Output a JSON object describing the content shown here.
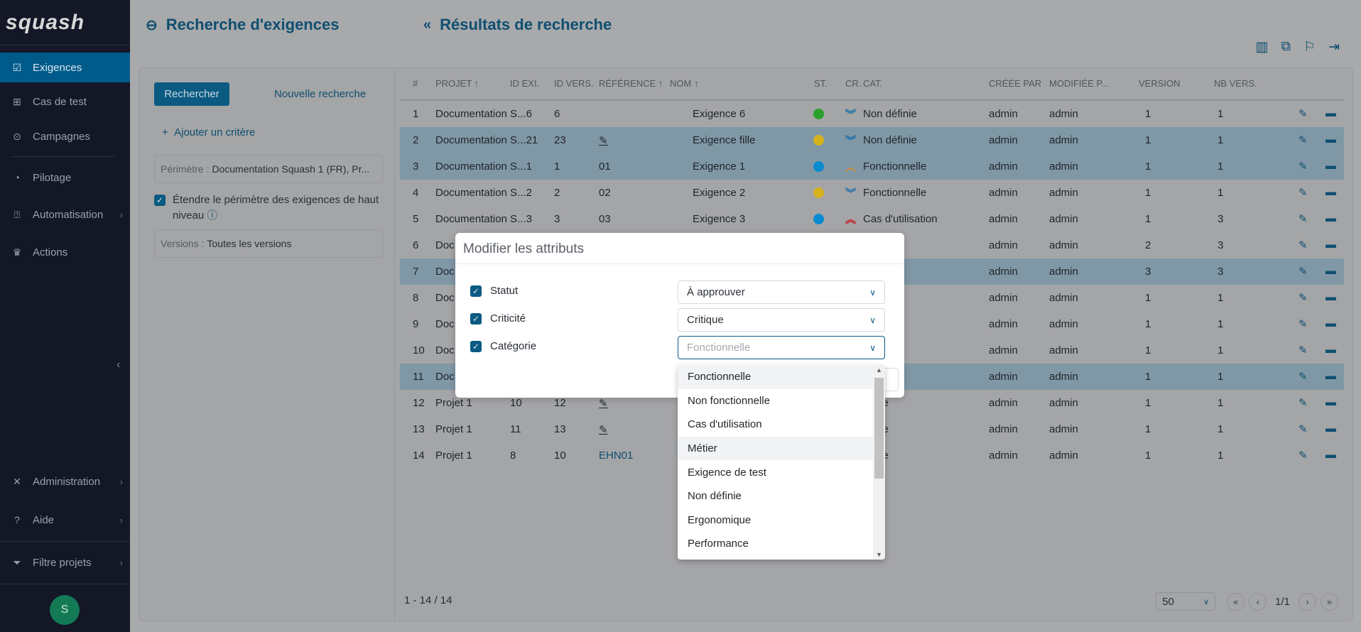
{
  "app": {
    "logo": "squash"
  },
  "sidebar": {
    "items": [
      {
        "label": "Exigences",
        "icon": "checkbox-icon",
        "active": true
      },
      {
        "label": "Cas de test",
        "icon": "tree-icon"
      },
      {
        "label": "Campagnes",
        "icon": "play-circle-icon"
      },
      {
        "label": "Pilotage",
        "icon": "pie-chart-icon"
      },
      {
        "label": "Automatisation",
        "icon": "robot-icon",
        "has_submenu": true
      },
      {
        "label": "Actions",
        "icon": "crown-icon"
      }
    ],
    "bottom_items": [
      {
        "label": "Administration",
        "icon": "tools-icon",
        "has_submenu": true
      },
      {
        "label": "Aide",
        "icon": "help-icon",
        "has_submenu": true
      },
      {
        "label": "Filtre projets",
        "icon": "filter-icon",
        "has_submenu": true
      }
    ],
    "avatar_initial": "S"
  },
  "header": {
    "search_title": "Recherche d'exigences",
    "results_title": "Résultats de recherche",
    "toolbar_icons": [
      "columns-icon",
      "multi-select-icon",
      "flag-icon",
      "export-icon"
    ]
  },
  "search_panel": {
    "search_button": "Rechercher",
    "new_search_link": "Nouvelle recherche",
    "add_criteria": "Ajouter un critère",
    "perimeter_label": "Périmètre :",
    "perimeter_value": "Documentation Squash 1 (FR), Pr...",
    "extend_label": "Étendre le périmètre des exigences de haut niveau",
    "extend_checked": true,
    "versions_label": "Versions :",
    "versions_value": "Toutes les versions"
  },
  "table": {
    "columns": [
      "#",
      "PROJET ↑",
      "ID EXI.",
      "ID VERS.",
      "RÉFÉRENCE ↑",
      "NOM ↑",
      "ST.",
      "CR.",
      "CAT.",
      "CRÉÉE PAR",
      "MODIFIÉE P...",
      "VERSION",
      "NB VERS."
    ],
    "rows": [
      {
        "n": "1",
        "projet": "Documentation S...6",
        "idexi": "",
        "idvers": "6",
        "ref": "",
        "nom": "Exigence 6",
        "st": "#2aa02a",
        "cr": "low",
        "cat": "Non définie",
        "creee": "admin",
        "modif": "admin",
        "version": "1",
        "nbvers": "1",
        "sel": false
      },
      {
        "n": "2",
        "projet": "Documentation S...21",
        "idexi": "",
        "idvers": "23",
        "ref": "✎",
        "nom": "Exigence fille",
        "st": "#d6b21e",
        "cr": "low",
        "cat": "Non définie",
        "creee": "admin",
        "modif": "admin",
        "version": "1",
        "nbvers": "1",
        "sel": true
      },
      {
        "n": "3",
        "projet": "Documentation S...1",
        "idexi": "",
        "idvers": "1",
        "ref": "01",
        "nom": "Exigence 1",
        "st": "#0a8ad0",
        "cr": "major",
        "cat": "Fonctionnelle",
        "creee": "admin",
        "modif": "admin",
        "version": "1",
        "nbvers": "1",
        "sel": true
      },
      {
        "n": "4",
        "projet": "Documentation S...2",
        "idexi": "",
        "idvers": "2",
        "ref": "02",
        "nom": "Exigence 2",
        "st": "#d6b21e",
        "cr": "low",
        "cat": "Fonctionnelle",
        "creee": "admin",
        "modif": "admin",
        "version": "1",
        "nbvers": "1",
        "sel": false
      },
      {
        "n": "5",
        "projet": "Documentation S...3",
        "idexi": "",
        "idvers": "3",
        "ref": "03",
        "nom": "Exigence 3",
        "st": "#0a8ad0",
        "cr": "critical",
        "cat": "Cas d'utilisation",
        "creee": "admin",
        "modif": "admin",
        "version": "1",
        "nbvers": "3",
        "sel": false
      },
      {
        "n": "6",
        "projet": "Doc",
        "idexi": "",
        "idvers": "",
        "ref": "",
        "nom": "",
        "st": "",
        "cr": "",
        "cat": "sation",
        "creee": "admin",
        "modif": "admin",
        "version": "2",
        "nbvers": "3",
        "sel": false
      },
      {
        "n": "7",
        "projet": "Doc",
        "idexi": "",
        "idvers": "",
        "ref": "",
        "nom": "",
        "st": "",
        "cr": "",
        "cat": "sation",
        "creee": "admin",
        "modif": "admin",
        "version": "3",
        "nbvers": "3",
        "sel": true
      },
      {
        "n": "8",
        "projet": "Doc",
        "idexi": "",
        "idvers": "",
        "ref": "",
        "nom": "",
        "st": "",
        "cr": "",
        "cat": "ie",
        "creee": "admin",
        "modif": "admin",
        "version": "1",
        "nbvers": "1",
        "sel": false
      },
      {
        "n": "9",
        "projet": "Doc",
        "idexi": "",
        "idvers": "",
        "ref": "",
        "nom": "",
        "st": "",
        "cr": "",
        "cat": "ie",
        "creee": "admin",
        "modif": "admin",
        "version": "1",
        "nbvers": "1",
        "sel": false
      },
      {
        "n": "10",
        "projet": "Doc",
        "idexi": "",
        "idvers": "",
        "ref": "",
        "nom": "",
        "st": "",
        "cr": "",
        "cat": "ionnelle",
        "creee": "admin",
        "modif": "admin",
        "version": "1",
        "nbvers": "1",
        "sel": false
      },
      {
        "n": "11",
        "projet": "Doc",
        "idexi": "",
        "idvers": "",
        "ref": "",
        "nom": "",
        "st": "",
        "cr": "",
        "cat": "ie",
        "creee": "admin",
        "modif": "admin",
        "version": "1",
        "nbvers": "1",
        "sel": true
      },
      {
        "n": "12",
        "projet": "Projet 1",
        "idexi": "10",
        "idvers": "12",
        "ref": "✎",
        "nom": "",
        "st": "",
        "cr": "",
        "cat": "éfinie",
        "creee": "admin",
        "modif": "admin",
        "version": "1",
        "nbvers": "1",
        "sel": false
      },
      {
        "n": "13",
        "projet": "Projet 1",
        "idexi": "11",
        "idvers": "13",
        "ref": "✎",
        "nom": "",
        "st": "",
        "cr": "",
        "cat": "éfinie",
        "creee": "admin",
        "modif": "admin",
        "version": "1",
        "nbvers": "1",
        "sel": false
      },
      {
        "n": "14",
        "projet": "Projet 1",
        "idexi": "8",
        "idvers": "10",
        "ref": "EHN01",
        "nom": "",
        "st": "",
        "cr": "",
        "cat": "éfinie",
        "creee": "admin",
        "modif": "admin",
        "version": "1",
        "nbvers": "1",
        "sel": false
      }
    ],
    "row_count_text": "1 - 14 / 14",
    "page_size": "50",
    "page_info": "1/1"
  },
  "modal": {
    "title": "Modifier les attributs",
    "fields": [
      {
        "label": "Statut",
        "checked": true,
        "value": "À approuver"
      },
      {
        "label": "Criticité",
        "checked": true,
        "value": "Critique"
      },
      {
        "label": "Catégorie",
        "checked": true,
        "placeholder": "Fonctionnelle"
      }
    ],
    "dropdown_options": [
      "Fonctionnelle",
      "Non fonctionnelle",
      "Cas d'utilisation",
      "Métier",
      "Exigence de test",
      "Non définie",
      "Ergonomique",
      "Performance"
    ],
    "highlighted_options": [
      0,
      3
    ]
  },
  "colors": {
    "accent": "#005b8a",
    "sidebar_bg": "#131726",
    "selected_row": "#8098a6"
  }
}
